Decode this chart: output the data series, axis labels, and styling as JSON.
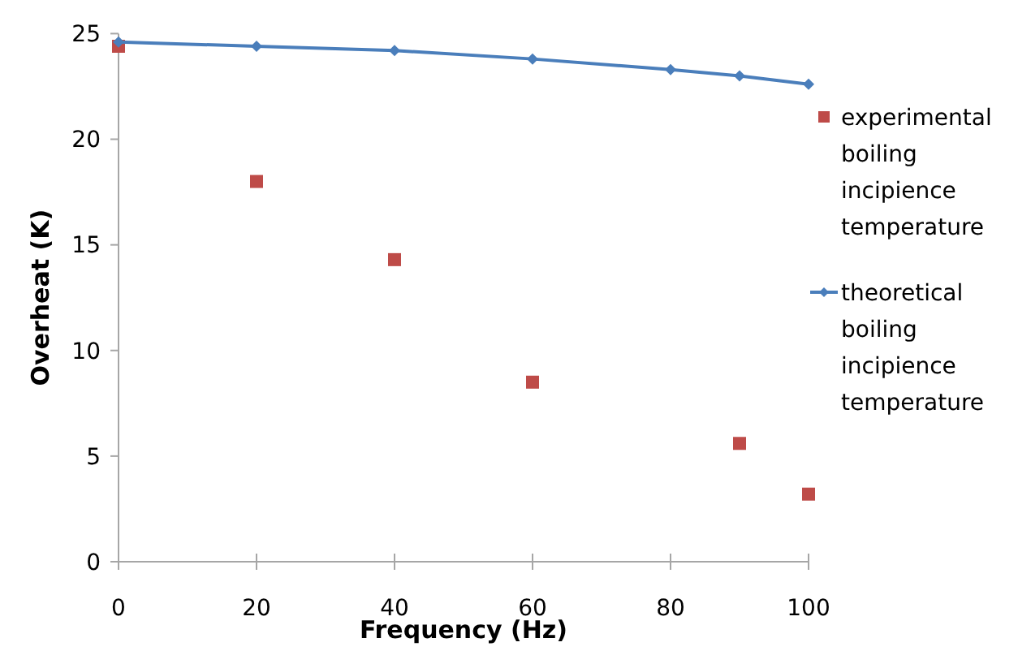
{
  "chart_data": {
    "type": "scatter",
    "xlabel": "Frequency (Hz)",
    "ylabel": "Overheat (K)",
    "xlim": [
      0,
      100
    ],
    "xticks": [
      0,
      20,
      40,
      60,
      80,
      100
    ],
    "ylim": [
      0,
      25
    ],
    "yticks": [
      0,
      5,
      10,
      15,
      20,
      25
    ],
    "grid": false,
    "legend": "right",
    "series": [
      {
        "name": "experimental boiling incipience temperature",
        "marker": "square",
        "color": "#be4b48",
        "x": [
          0,
          20,
          40,
          60,
          90,
          100
        ],
        "values": [
          24.4,
          18.0,
          14.3,
          8.5,
          5.6,
          3.2
        ]
      },
      {
        "name": "theoretical boiling incipience temperature",
        "type": "line",
        "marker": "diamond",
        "color": "#4a7ebb",
        "x": [
          0,
          20,
          40,
          60,
          80,
          90,
          100
        ],
        "values": [
          24.6,
          24.4,
          24.2,
          23.8,
          23.3,
          23.0,
          22.6
        ]
      }
    ]
  }
}
